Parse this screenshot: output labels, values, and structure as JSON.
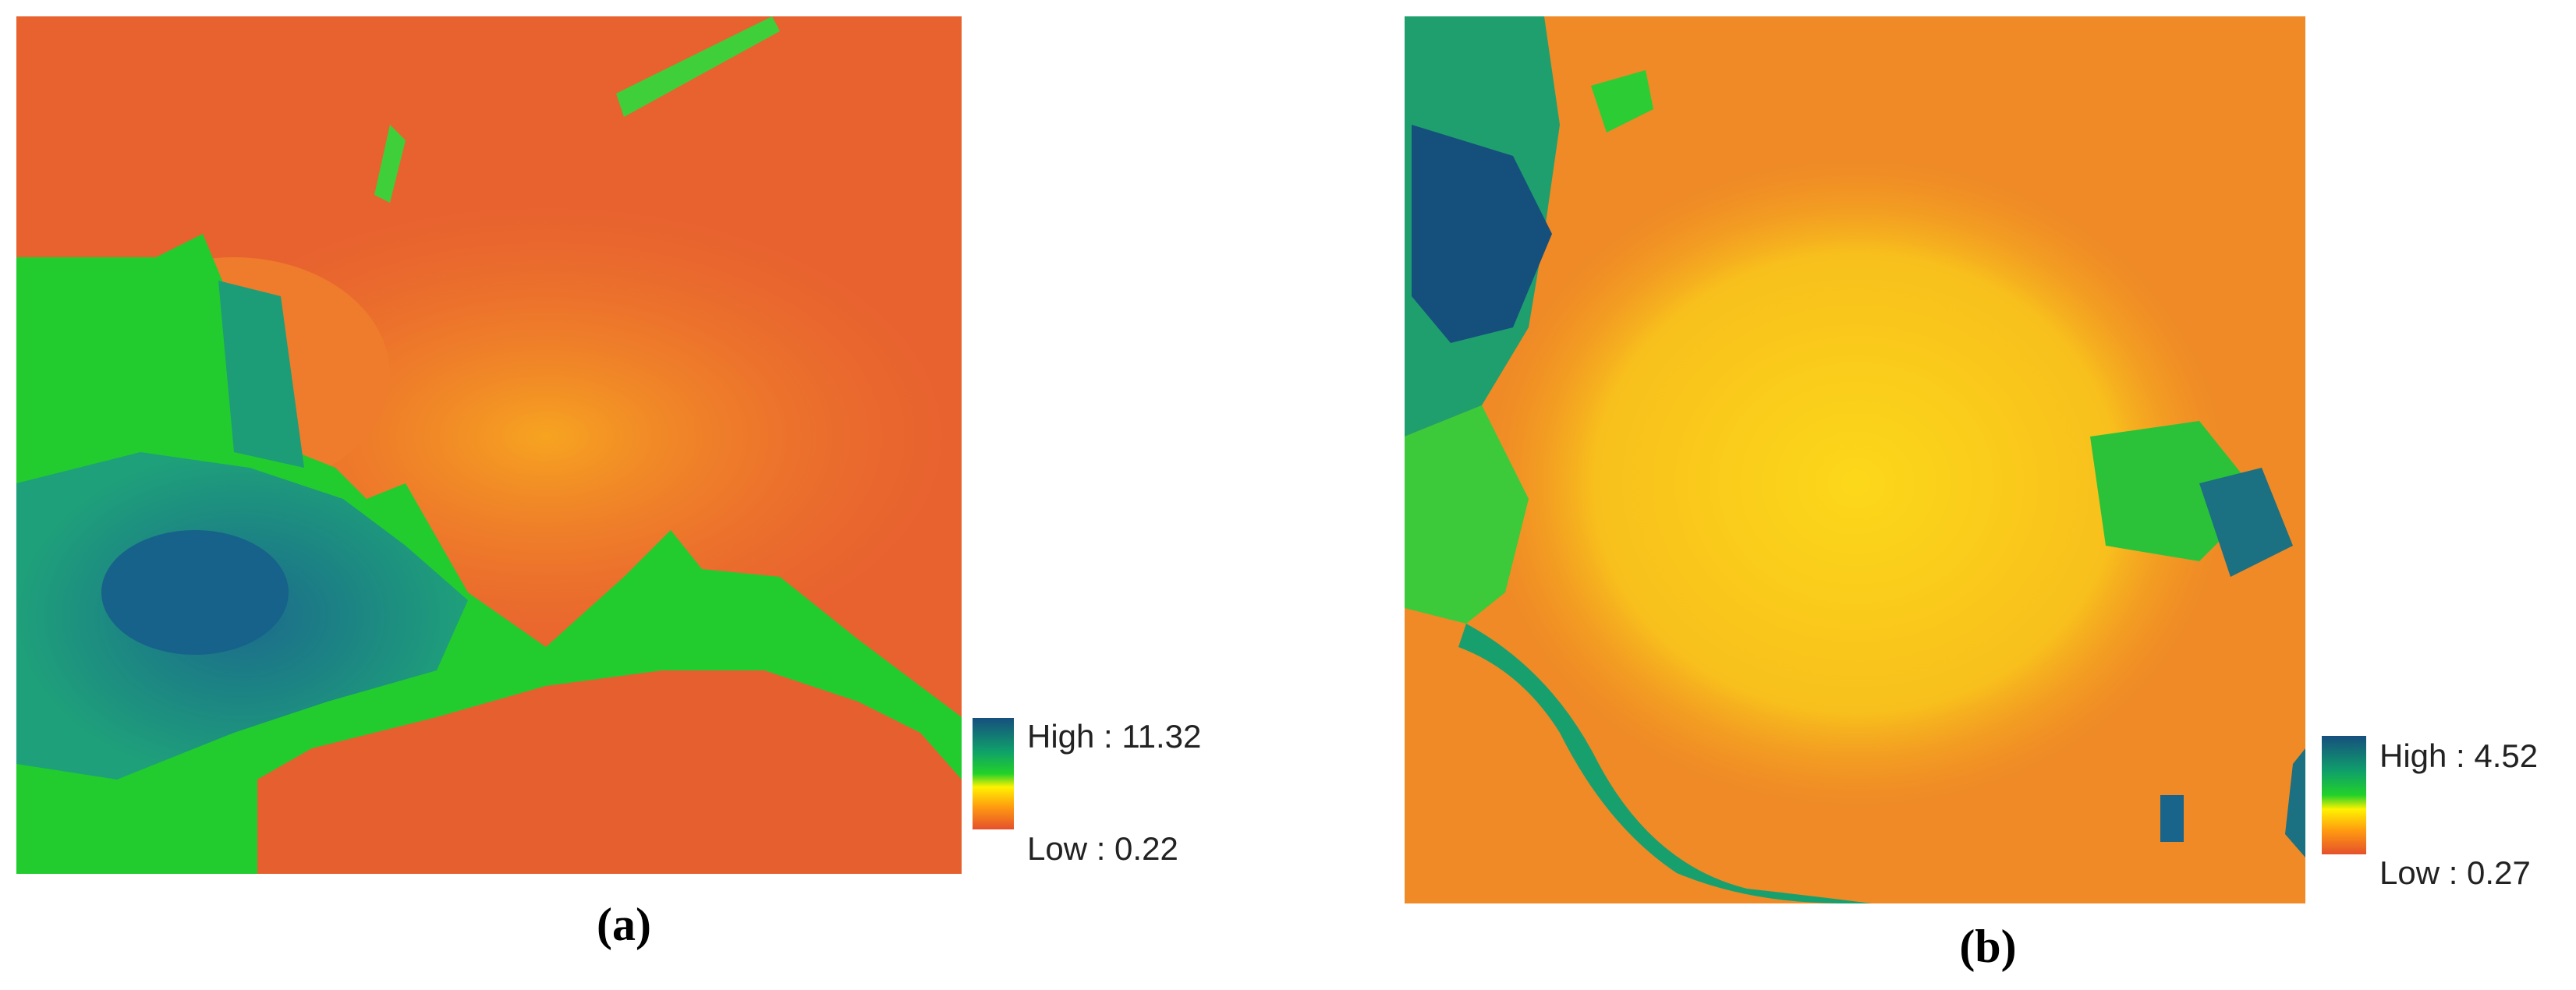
{
  "panels": [
    {
      "label": "(a)",
      "legend_high": "High : 11.32",
      "legend_low": "Low : 0.22"
    },
    {
      "label": "(b)",
      "legend_high": "High : 4.52",
      "legend_low": "Low : 0.27"
    }
  ]
}
